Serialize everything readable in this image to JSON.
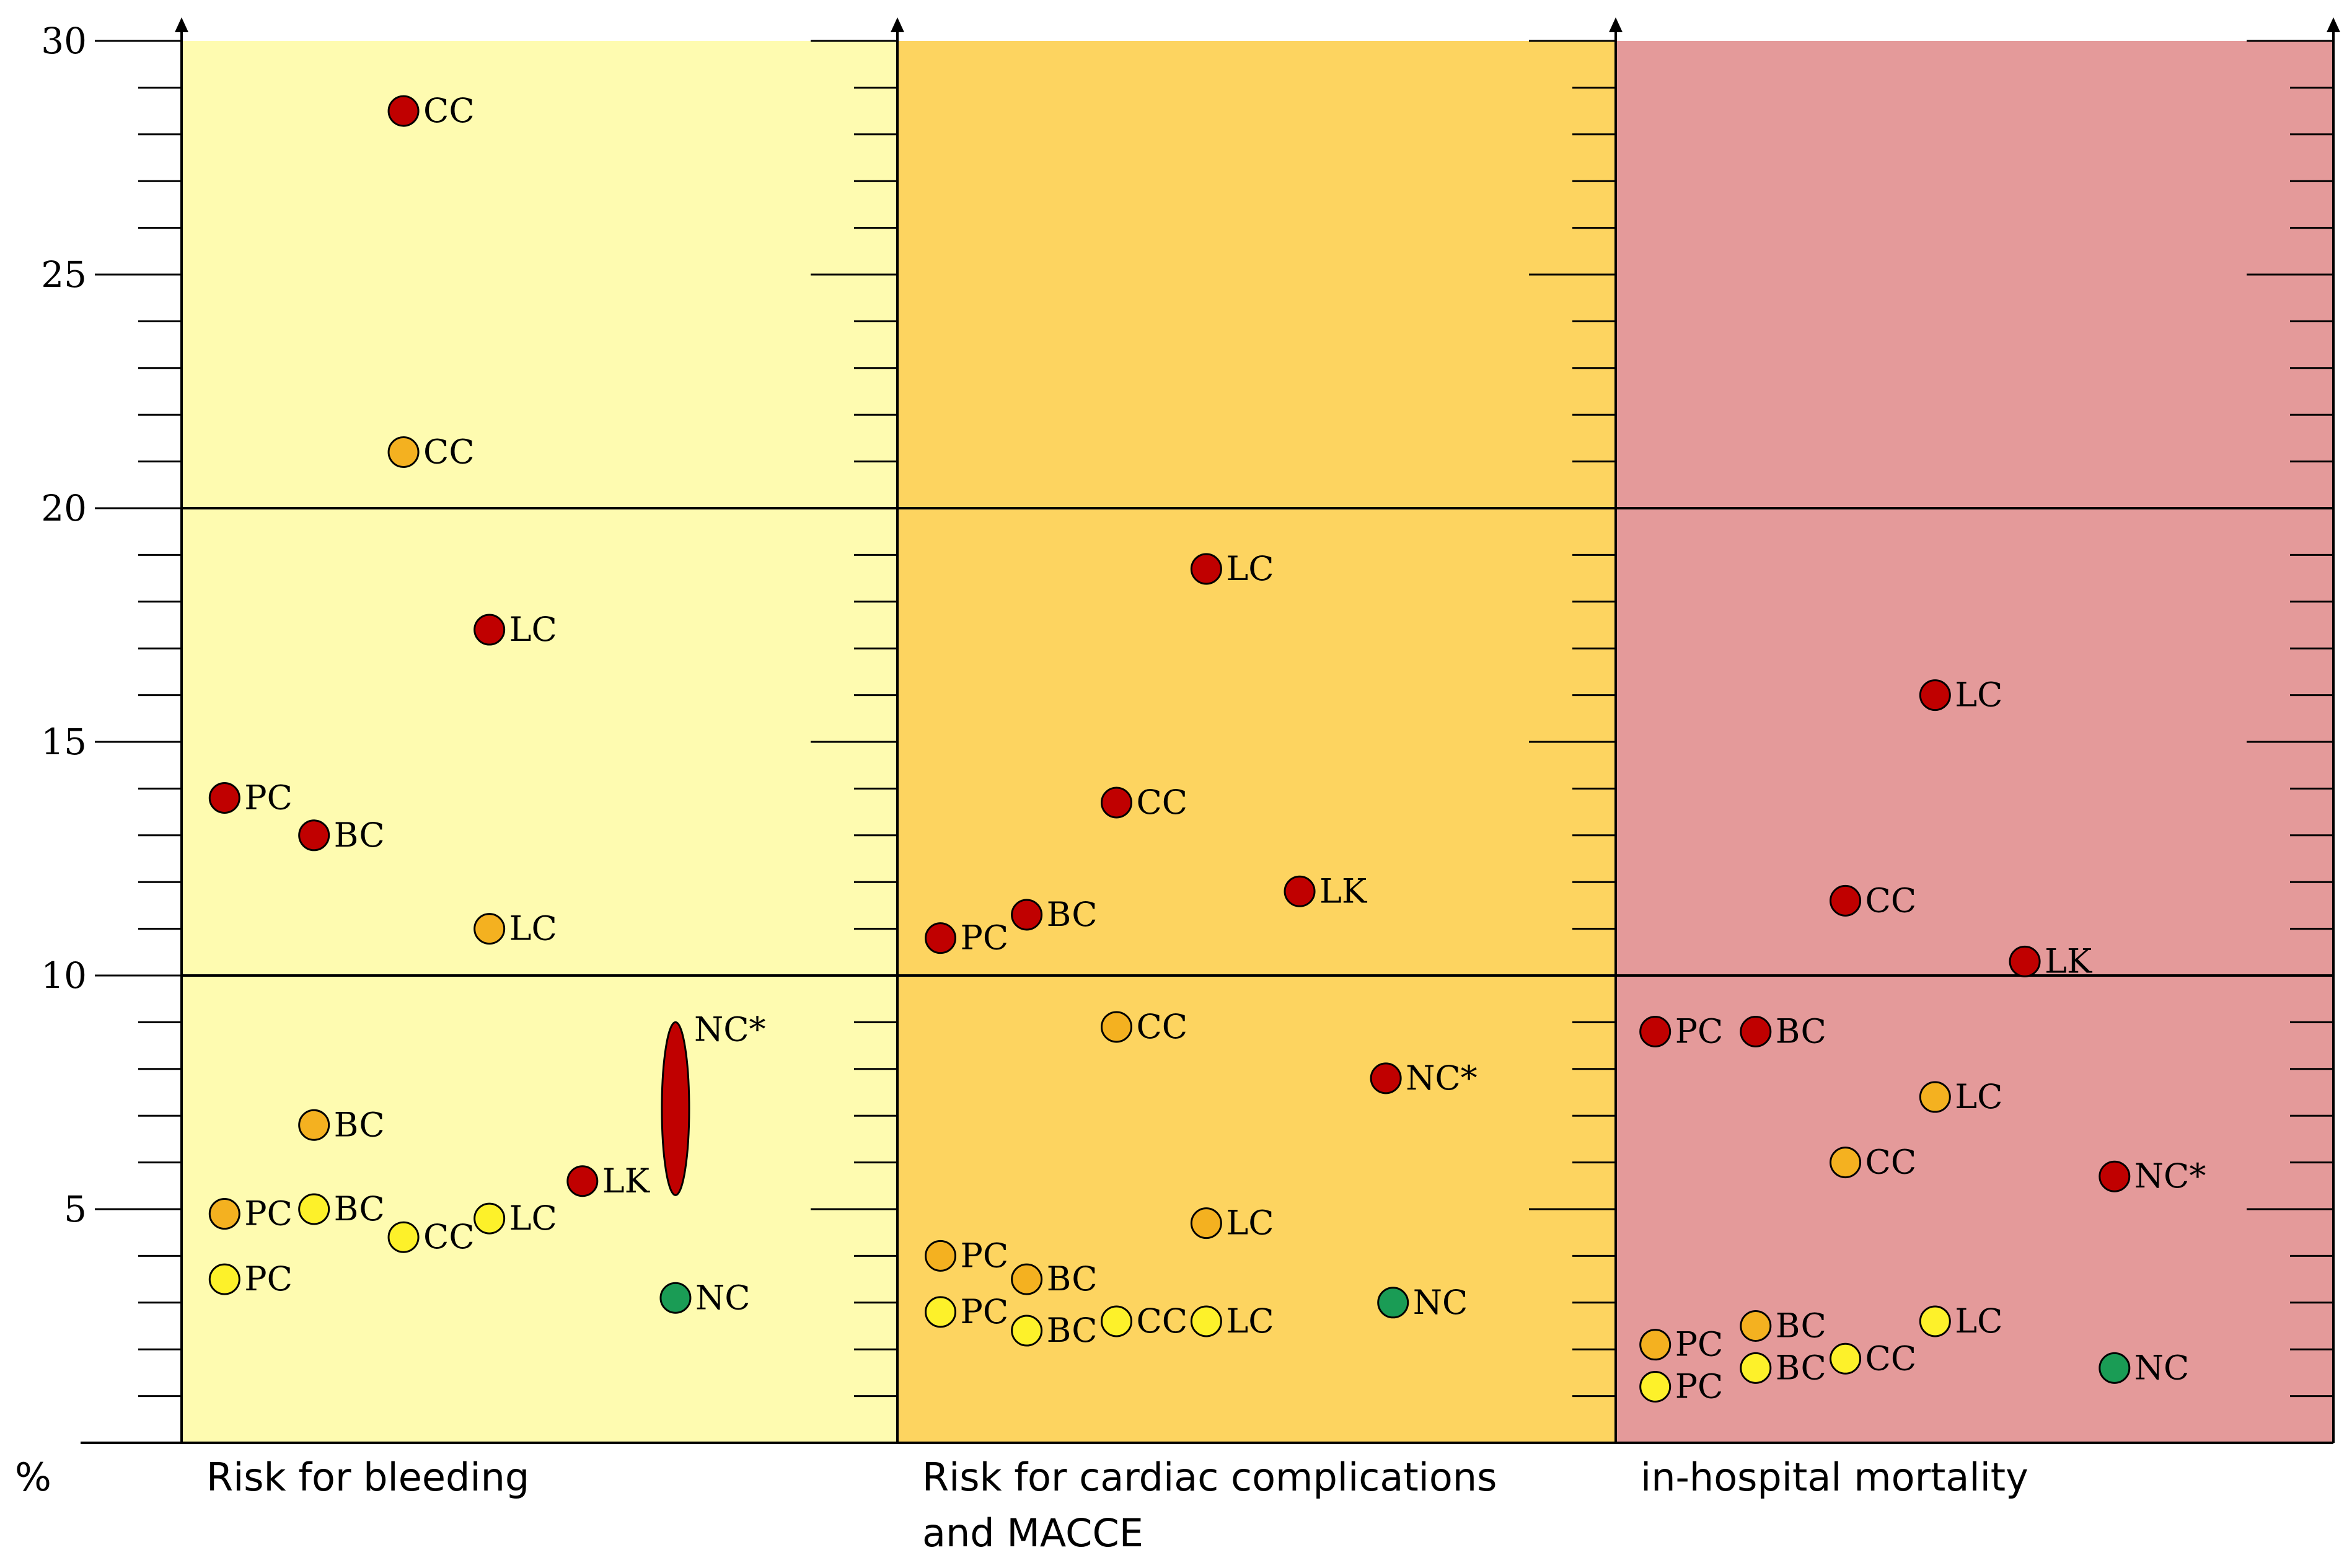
{
  "chart_data": {
    "type": "scatter",
    "ylabel": "%",
    "ylim": [
      0,
      30
    ],
    "yticks": [
      5,
      10,
      15,
      20,
      25,
      30
    ],
    "colors": {
      "red": "#c00000",
      "orange": "#f4b120",
      "yellow": "#fdf12a",
      "green": "#1a9c55"
    },
    "panels": [
      {
        "title_lines": [
          "Risk for bleeding"
        ],
        "background": "#fefbb0",
        "points": [
          {
            "label": "CC",
            "x": 0.31,
            "y": 28.5,
            "color": "red"
          },
          {
            "label": "CC",
            "x": 0.31,
            "y": 21.2,
            "color": "orange"
          },
          {
            "label": "LC",
            "x": 0.43,
            "y": 17.4,
            "color": "red"
          },
          {
            "label": "PC",
            "x": 0.06,
            "y": 13.8,
            "color": "red"
          },
          {
            "label": "BC",
            "x": 0.185,
            "y": 13.0,
            "color": "red"
          },
          {
            "label": "LC",
            "x": 0.43,
            "y": 11.0,
            "color": "orange"
          },
          {
            "label": "BC",
            "x": 0.185,
            "y": 6.8,
            "color": "orange"
          },
          {
            "label": "LK",
            "x": 0.56,
            "y": 5.6,
            "color": "red"
          },
          {
            "label": "PC",
            "x": 0.06,
            "y": 4.9,
            "color": "orange"
          },
          {
            "label": "BC",
            "x": 0.185,
            "y": 5.0,
            "color": "yellow"
          },
          {
            "label": "CC",
            "x": 0.31,
            "y": 4.4,
            "color": "yellow"
          },
          {
            "label": "LC",
            "x": 0.43,
            "y": 4.8,
            "color": "yellow"
          },
          {
            "label": "PC",
            "x": 0.06,
            "y": 3.5,
            "color": "yellow"
          },
          {
            "label": "NC",
            "x": 0.69,
            "y": 3.1,
            "color": "green"
          }
        ],
        "ranges": [
          {
            "label": "NC*",
            "x": 0.69,
            "y_low": 5.3,
            "y_high": 9.0,
            "color": "red"
          }
        ]
      },
      {
        "title_lines": [
          "Risk for cardiac complications",
          "and MACCE"
        ],
        "background": "#fdd460",
        "points": [
          {
            "label": "LC",
            "x": 0.43,
            "y": 18.7,
            "color": "red"
          },
          {
            "label": "CC",
            "x": 0.305,
            "y": 13.7,
            "color": "red"
          },
          {
            "label": "LK",
            "x": 0.56,
            "y": 11.8,
            "color": "red"
          },
          {
            "label": "BC",
            "x": 0.18,
            "y": 11.3,
            "color": "red"
          },
          {
            "label": "PC",
            "x": 0.06,
            "y": 10.8,
            "color": "red"
          },
          {
            "label": "CC",
            "x": 0.305,
            "y": 8.9,
            "color": "orange"
          },
          {
            "label": "NC*",
            "x": 0.68,
            "y": 7.8,
            "color": "red"
          },
          {
            "label": "LC",
            "x": 0.43,
            "y": 4.7,
            "color": "orange"
          },
          {
            "label": "PC",
            "x": 0.06,
            "y": 4.0,
            "color": "orange"
          },
          {
            "label": "BC",
            "x": 0.18,
            "y": 3.5,
            "color": "orange"
          },
          {
            "label": "NC",
            "x": 0.69,
            "y": 3.0,
            "color": "green"
          },
          {
            "label": "PC",
            "x": 0.06,
            "y": 2.8,
            "color": "yellow"
          },
          {
            "label": "BC",
            "x": 0.18,
            "y": 2.4,
            "color": "yellow"
          },
          {
            "label": "CC",
            "x": 0.305,
            "y": 2.6,
            "color": "yellow"
          },
          {
            "label": "LC",
            "x": 0.43,
            "y": 2.6,
            "color": "yellow"
          }
        ],
        "ranges": []
      },
      {
        "title_lines": [
          "in-hospital mortality"
        ],
        "background": "#e49a9a",
        "points": [
          {
            "label": "LC",
            "x": 0.445,
            "y": 16.0,
            "color": "red"
          },
          {
            "label": "CC",
            "x": 0.32,
            "y": 11.6,
            "color": "red"
          },
          {
            "label": "LK",
            "x": 0.57,
            "y": 10.3,
            "color": "red"
          },
          {
            "label": "PC",
            "x": 0.055,
            "y": 8.8,
            "color": "red"
          },
          {
            "label": "BC",
            "x": 0.195,
            "y": 8.8,
            "color": "red"
          },
          {
            "label": "LC",
            "x": 0.445,
            "y": 7.4,
            "color": "orange"
          },
          {
            "label": "CC",
            "x": 0.32,
            "y": 6.0,
            "color": "orange"
          },
          {
            "label": "NC*",
            "x": 0.695,
            "y": 5.7,
            "color": "red"
          },
          {
            "label": "LC",
            "x": 0.445,
            "y": 2.6,
            "color": "yellow"
          },
          {
            "label": "BC",
            "x": 0.195,
            "y": 2.5,
            "color": "orange"
          },
          {
            "label": "PC",
            "x": 0.055,
            "y": 2.1,
            "color": "orange"
          },
          {
            "label": "CC",
            "x": 0.32,
            "y": 1.8,
            "color": "yellow"
          },
          {
            "label": "BC",
            "x": 0.195,
            "y": 1.6,
            "color": "yellow"
          },
          {
            "label": "PC",
            "x": 0.055,
            "y": 1.2,
            "color": "yellow"
          },
          {
            "label": "NC",
            "x": 0.695,
            "y": 1.6,
            "color": "green"
          }
        ],
        "ranges": []
      }
    ]
  }
}
